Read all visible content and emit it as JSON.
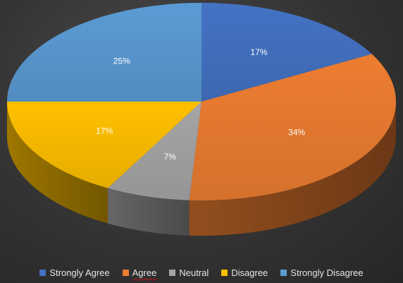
{
  "chart_data": {
    "type": "pie",
    "style": "3d",
    "title": "",
    "slices": [
      {
        "label": "Strongly Agree",
        "value": 17,
        "value_label": "17%",
        "color": "#4472C4"
      },
      {
        "label": "Agree",
        "value": 34,
        "value_label": "34%",
        "color": "#ED7D31"
      },
      {
        "label": "Neutral",
        "value": 7,
        "value_label": "7%",
        "color": "#A5A5A5"
      },
      {
        "label": "Disagree",
        "value": 17,
        "value_label": "17%",
        "color": "#FFC000"
      },
      {
        "label": "Strongly Disagree",
        "value": 25,
        "value_label": "25%",
        "color": "#5B9BD5"
      }
    ],
    "legend_position": "bottom",
    "start_angle_deg": 0,
    "direction": "clockwise"
  }
}
